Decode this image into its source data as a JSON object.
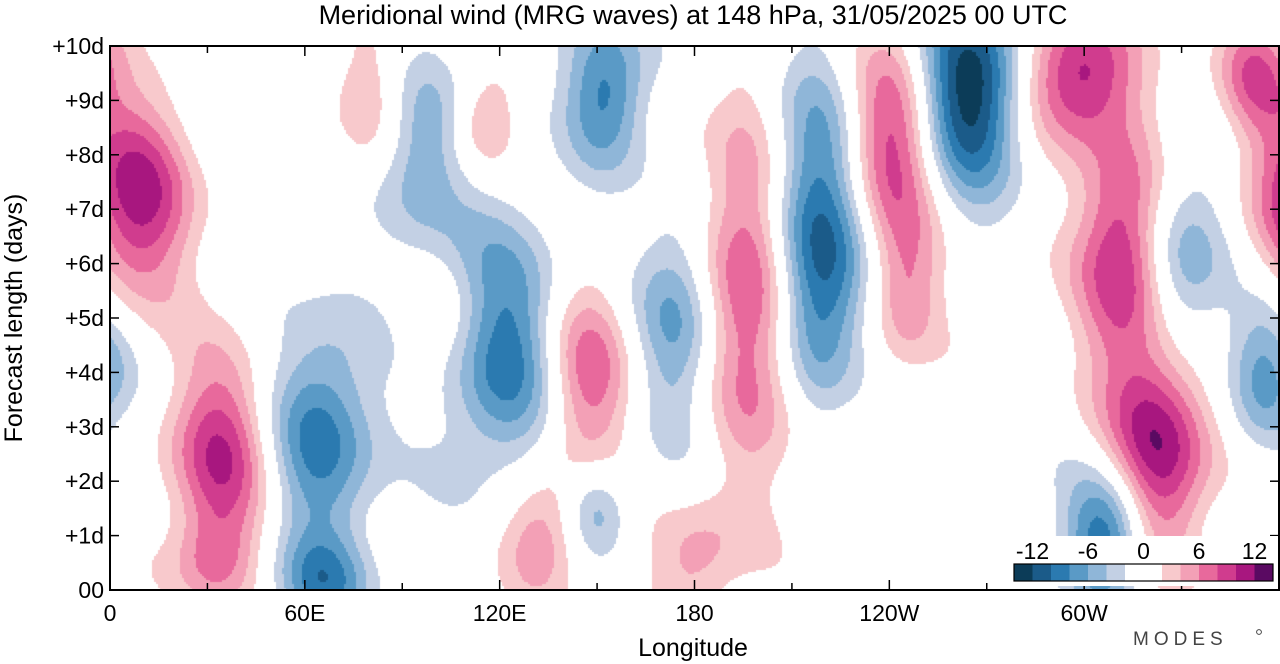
{
  "chart_data": {
    "type": "heatmap",
    "title": "Meridional wind (MRG waves) at  148 hPa,  31/05/2025  00 UTC",
    "xlabel": "Longitude",
    "ylabel": "Forecast length (days)",
    "x_ticks": [
      "0",
      "60E",
      "120E",
      "180",
      "120W",
      "60W"
    ],
    "x_tick_values": [
      0,
      60,
      120,
      180,
      240,
      300
    ],
    "y_ticks": [
      "00",
      "+1d",
      "+2d",
      "+3d",
      "+4d",
      "+5d",
      "+6d",
      "+7d",
      "+8d",
      "+9d",
      "+10d"
    ],
    "y_tick_values": [
      0,
      1,
      2,
      3,
      4,
      5,
      6,
      7,
      8,
      9,
      10
    ],
    "xlim": [
      0,
      360
    ],
    "ylim": [
      0,
      10
    ],
    "colorbar": {
      "labels": [
        "-12",
        "-6",
        "0",
        "6",
        "12"
      ],
      "label_values": [
        -12,
        -6,
        0,
        6,
        12
      ],
      "range": [
        -14,
        14
      ],
      "levels": [
        -14,
        -12,
        -10,
        -8,
        -6,
        -4,
        -2,
        2,
        4,
        6,
        8,
        10,
        12,
        14
      ],
      "colors": [
        "#0c3c58",
        "#1b5b89",
        "#2b7ab0",
        "#5a9ac6",
        "#8fb6d8",
        "#c3d0e4",
        "#ffffff",
        "#f8c9cc",
        "#f3a0b6",
        "#e8699c",
        "#d03c8e",
        "#a8177f",
        "#5a0a62"
      ]
    },
    "features": [
      {
        "lon": 8,
        "day": 7.2,
        "amp": 11,
        "wl": 12,
        "wd": 1.3
      },
      {
        "lon": 34,
        "day": 2.5,
        "amp": 10,
        "wl": 11,
        "wd": 1.3
      },
      {
        "lon": 32,
        "day": 0.5,
        "amp": 5,
        "wl": 9,
        "wd": 0.6
      },
      {
        "lon": 65,
        "day": 2.8,
        "amp": -9,
        "wl": 12,
        "wd": 1.5
      },
      {
        "lon": 65,
        "day": 0.1,
        "amp": -7,
        "wl": 10,
        "wd": 0.6
      },
      {
        "lon": 120,
        "day": 4.5,
        "amp": -10,
        "wl": 14,
        "wd": 1.6
      },
      {
        "lon": 95,
        "day": 8,
        "amp": -6,
        "wl": 10,
        "wd": 1.2
      },
      {
        "lon": 153,
        "day": 9.2,
        "amp": -9,
        "wl": 9,
        "wd": 1.0
      },
      {
        "lon": 105,
        "day": 4.8,
        "amp": 4,
        "wl": 10,
        "wd": 0.9
      },
      {
        "lon": 115,
        "day": 8.5,
        "amp": 5,
        "wl": 7,
        "wd": 0.6
      },
      {
        "lon": 147,
        "day": 4,
        "amp": 8,
        "wl": 10,
        "wd": 1.3
      },
      {
        "lon": 133,
        "day": 1.0,
        "amp": 6,
        "wl": 9,
        "wd": 0.8
      },
      {
        "lon": 176,
        "day": 5,
        "amp": -8,
        "wl": 10,
        "wd": 1.5
      },
      {
        "lon": 150,
        "day": 1.5,
        "amp": -6,
        "wl": 7,
        "wd": 0.6
      },
      {
        "lon": 200,
        "day": 5.8,
        "amp": 13,
        "wl": 13,
        "wd": 2.2
      },
      {
        "lon": 215,
        "day": 7.0,
        "amp": -13,
        "wl": 12,
        "wd": 1.8
      },
      {
        "lon": 217,
        "day": 5.0,
        "amp": -7,
        "wl": 10,
        "wd": 1.3
      },
      {
        "lon": 240,
        "day": 8.2,
        "amp": 10,
        "wl": 10,
        "wd": 1.3
      },
      {
        "lon": 245,
        "day": 5.5,
        "amp": 6,
        "wl": 8,
        "wd": 1.0
      },
      {
        "lon": 265,
        "day": 9.2,
        "amp": -14,
        "wl": 11,
        "wd": 1.3
      },
      {
        "lon": 298,
        "day": 9.5,
        "amp": 11,
        "wl": 12,
        "wd": 0.9
      },
      {
        "lon": 312,
        "day": 6.2,
        "amp": 11,
        "wl": 10,
        "wd": 1.5
      },
      {
        "lon": 330,
        "day": 6.0,
        "amp": -7,
        "wl": 10,
        "wd": 1.3
      },
      {
        "lon": 323,
        "day": 2.6,
        "amp": 12,
        "wl": 11,
        "wd": 1.4
      },
      {
        "lon": 307,
        "day": 1.0,
        "amp": -11,
        "wl": 9,
        "wd": 0.9
      },
      {
        "lon": 355,
        "day": 4.0,
        "amp": -7,
        "wl": 8,
        "wd": 1.0
      },
      {
        "lon": 352,
        "day": 9.5,
        "amp": 7,
        "wl": 8,
        "wd": 0.8
      },
      {
        "lon": 180,
        "day": 0.5,
        "amp": 5,
        "wl": 10,
        "wd": 0.8
      },
      {
        "lon": 80,
        "day": 9,
        "amp": 4,
        "wl": 8,
        "wd": 1.0
      }
    ]
  },
  "branding": {
    "logo_text": "MODES"
  }
}
